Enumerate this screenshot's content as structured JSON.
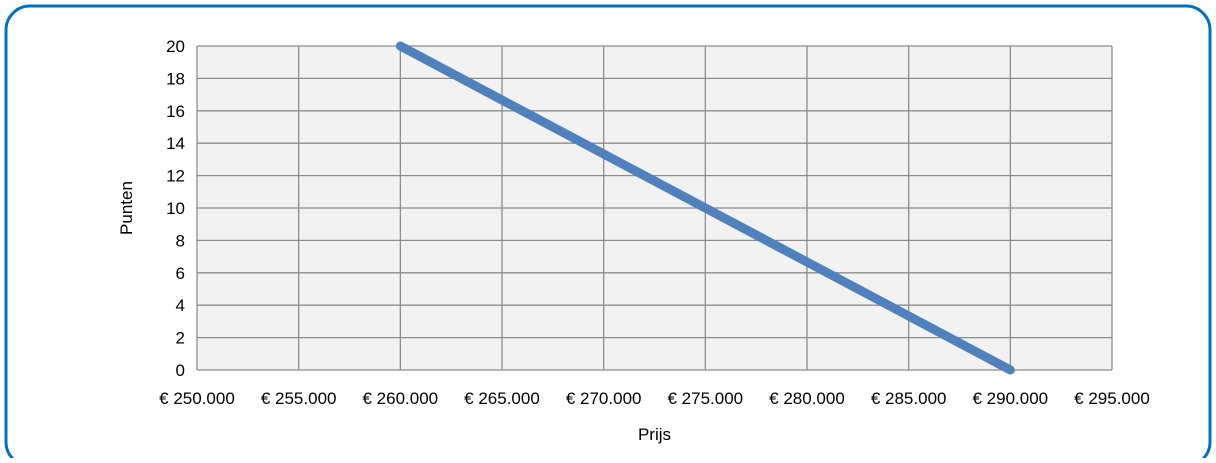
{
  "chart_data": {
    "type": "line",
    "title": "",
    "xlabel": "Prijs",
    "ylabel": "Punten",
    "x_ticks": [
      "€ 250.000",
      "€ 255.000",
      "€ 260.000",
      "€ 265.000",
      "€ 270.000",
      "€ 275.000",
      "€ 280.000",
      "€ 285.000",
      "€ 290.000",
      "€ 295.000"
    ],
    "y_ticks": [
      "0",
      "2",
      "4",
      "6",
      "8",
      "10",
      "12",
      "14",
      "16",
      "18",
      "20"
    ],
    "xlim": [
      250000,
      295000
    ],
    "ylim": [
      0,
      20
    ],
    "grid": true,
    "legend": "none",
    "series": [
      {
        "x": [
          260000,
          290000
        ],
        "y": [
          20,
          0
        ]
      }
    ]
  },
  "colors": {
    "frame_border": "#0070c0",
    "plot_background": "#f2f2f2",
    "gridline": "#8c8c8c",
    "series_line": "#4f81bd"
  }
}
